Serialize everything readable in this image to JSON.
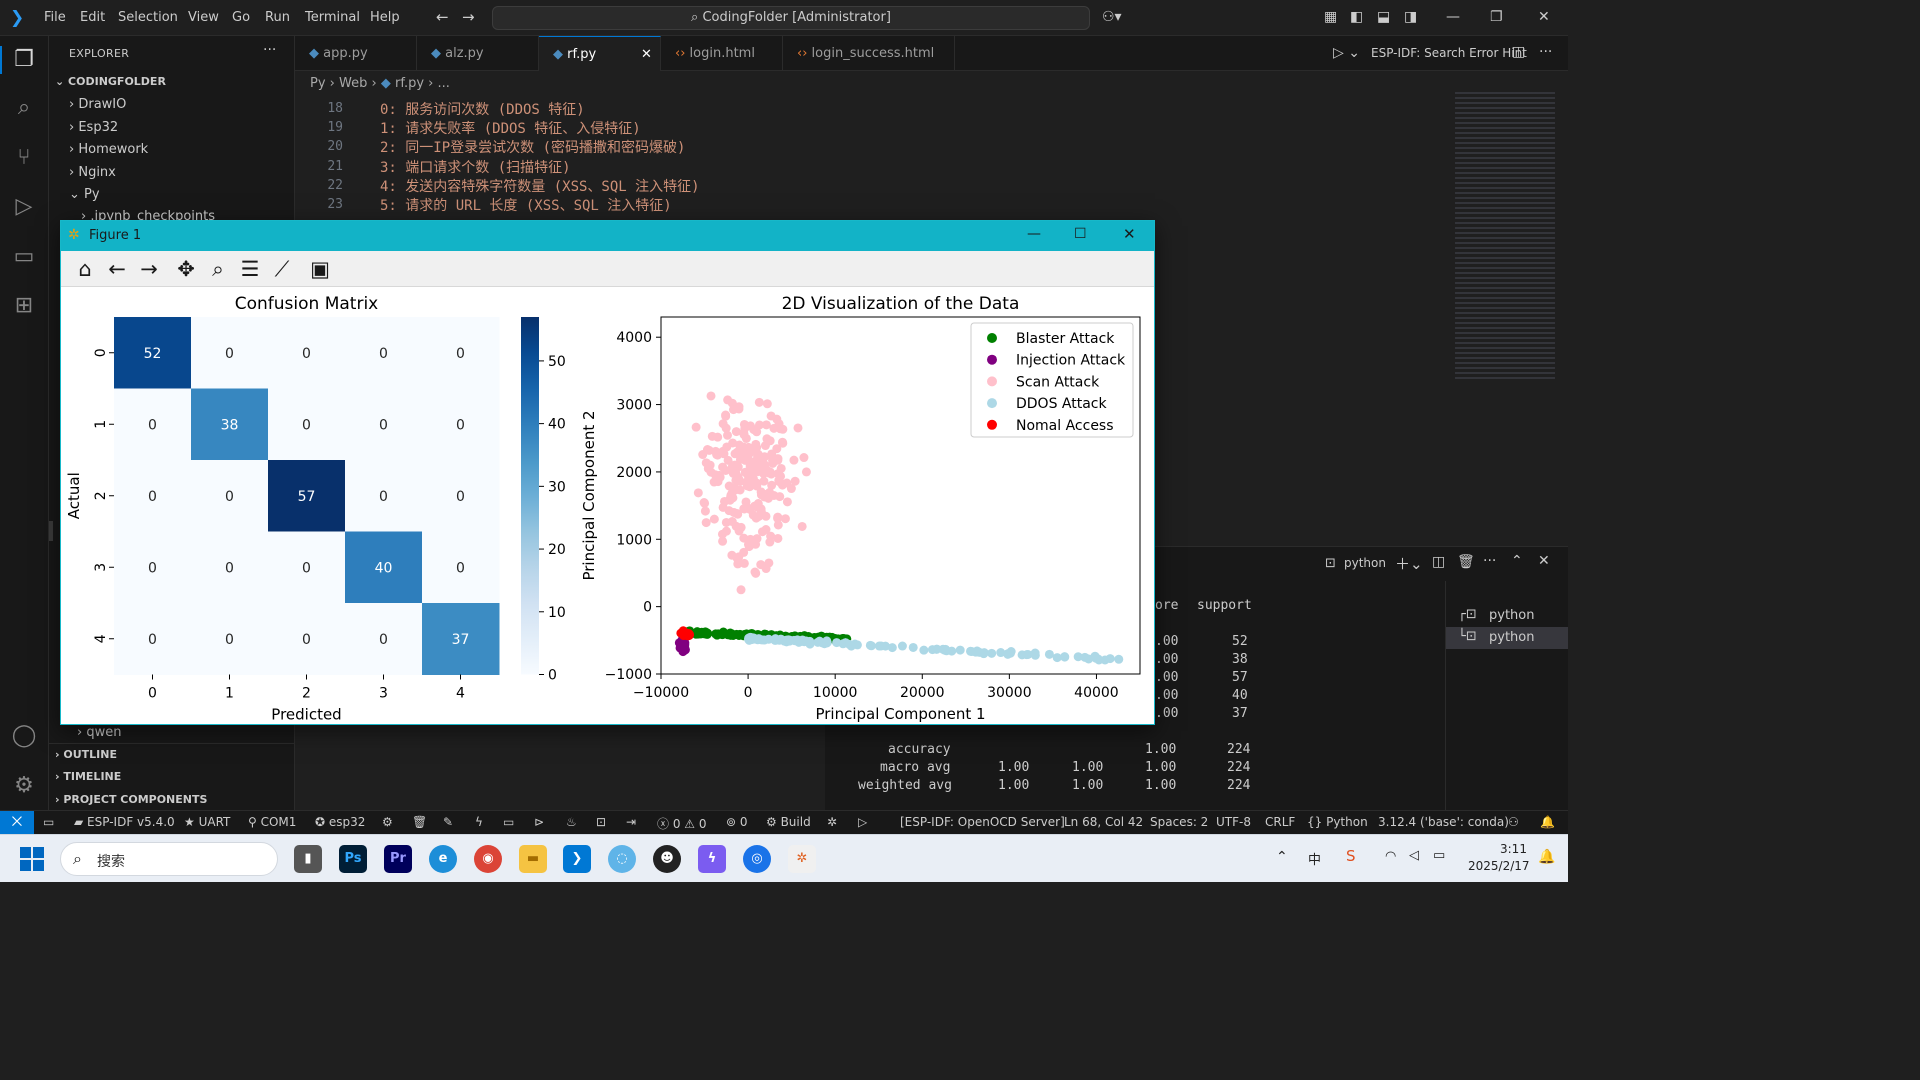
{
  "titlebar": {
    "menu": [
      "File",
      "Edit",
      "Selection",
      "View",
      "Go",
      "Run",
      "Terminal",
      "Help"
    ],
    "search": "CodingFolder [Administrator]"
  },
  "explorer": {
    "title": "EXPLORER",
    "root": "CODINGFOLDER",
    "items": [
      "DrawIO",
      "Esp32",
      "Homework",
      "Nginx",
      "Py",
      ".ipynb_checkpoints"
    ],
    "qwen": "qwen",
    "sections": [
      "OUTLINE",
      "TIMELINE",
      "PROJECT COMPONENTS"
    ]
  },
  "tabs": [
    "app.py",
    "alz.py",
    "rf.py",
    "login.html",
    "login_success.html"
  ],
  "tab_right": "ESP-IDF: Search Error Hint",
  "breadcrumb": {
    "a": "Py",
    "b": "Web",
    "c": "rf.py",
    "d": "..."
  },
  "editor": {
    "lines": [
      {
        "n": "18",
        "t": "0: 服务访问次数 (DDOS 特征)"
      },
      {
        "n": "19",
        "t": "1: 请求失败率 (DDOS 特征、入侵特征)"
      },
      {
        "n": "20",
        "t": "2: 同一IP登录尝试次数 (密码播撒和密码爆破)"
      },
      {
        "n": "21",
        "t": "3: 端口请求个数 (扫描特征)"
      },
      {
        "n": "22",
        "t": "4: 发送内容特殊字符数量 (XSS、SQL 注入特征)"
      },
      {
        "n": "23",
        "t": "5: 请求的 URL 长度 (XSS、SQL 注入特征)"
      }
    ]
  },
  "figure": {
    "title": "Figure 1"
  },
  "chart_data": [
    {
      "type": "heatmap",
      "title": "Confusion Matrix",
      "xlabel": "Predicted",
      "ylabel": "Actual",
      "x_categories": [
        "0",
        "1",
        "2",
        "3",
        "4"
      ],
      "y_categories": [
        "0",
        "1",
        "2",
        "3",
        "4"
      ],
      "matrix": [
        [
          52,
          0,
          0,
          0,
          0
        ],
        [
          0,
          38,
          0,
          0,
          0
        ],
        [
          0,
          0,
          57,
          0,
          0
        ],
        [
          0,
          0,
          0,
          40,
          0
        ],
        [
          0,
          0,
          0,
          0,
          37
        ]
      ],
      "colorbar_ticks": [
        0,
        10,
        20,
        30,
        40,
        50
      ],
      "colorbar_range": [
        0,
        57
      ],
      "colormap": "Blues"
    },
    {
      "type": "scatter",
      "title": "2D Visualization of the Data",
      "xlabel": "Principal Component 1",
      "ylabel": "Principal Component 2",
      "xlim": [
        -10000,
        45000
      ],
      "ylim": [
        -1000,
        4300
      ],
      "xticks": [
        -10000,
        0,
        10000,
        20000,
        30000,
        40000
      ],
      "xtick_labels": [
        "−10000",
        "0",
        "10000",
        "20000",
        "30000",
        "40000"
      ],
      "yticks": [
        -1000,
        0,
        1000,
        2000,
        3000,
        4000
      ],
      "ytick_labels": [
        "−1000",
        "0",
        "1000",
        "2000",
        "3000",
        "4000"
      ],
      "legend_position": "top-right",
      "series": [
        {
          "name": "Blaster Attack",
          "color": "#008000"
        },
        {
          "name": "Injection Attack",
          "color": "#800080"
        },
        {
          "name": "Scan Attack",
          "color": "#ffc0cb"
        },
        {
          "name": "DDOS Attack",
          "color": "#add8e6"
        },
        {
          "name": "Nomal Access",
          "color": "#ff0000"
        }
      ]
    }
  ],
  "panel": {
    "terminal_label": "python",
    "terminals": [
      "python",
      "python"
    ],
    "header": {
      "precision": "ore",
      "support": "support"
    },
    "rows": [
      {
        "c": ".00",
        "s": "52"
      },
      {
        "c": ".00",
        "s": "38"
      },
      {
        "c": ".00",
        "s": "57"
      },
      {
        "c": ".00",
        "s": "40"
      },
      {
        "c": ".00",
        "s": "37"
      }
    ],
    "summary": [
      {
        "label": "accuracy",
        "p": "",
        "r": "",
        "f": "1.00",
        "s": "224"
      },
      {
        "label": "macro avg",
        "p": "1.00",
        "r": "1.00",
        "f": "1.00",
        "s": "224"
      },
      {
        "label": "weighted avg",
        "p": "1.00",
        "r": "1.00",
        "f": "1.00",
        "s": "224"
      }
    ]
  },
  "status": {
    "idf": "ESP-IDF v5.4.0",
    "uart": "UART",
    "com": "COM1",
    "target": "esp32",
    "errors": "0",
    "warnings": "0",
    "ports": "0",
    "build": "Build",
    "openocd": "[ESP-IDF: OpenOCD Server]",
    "cursor": "Ln 68, Col 42",
    "spaces": "Spaces: 2",
    "encoding": "UTF-8",
    "eol": "CRLF",
    "lang": "Python",
    "interpreter": "3.12.4 ('base': conda)"
  },
  "taskbar": {
    "search": "搜索",
    "time": "3:11",
    "date": "2025/2/17"
  }
}
